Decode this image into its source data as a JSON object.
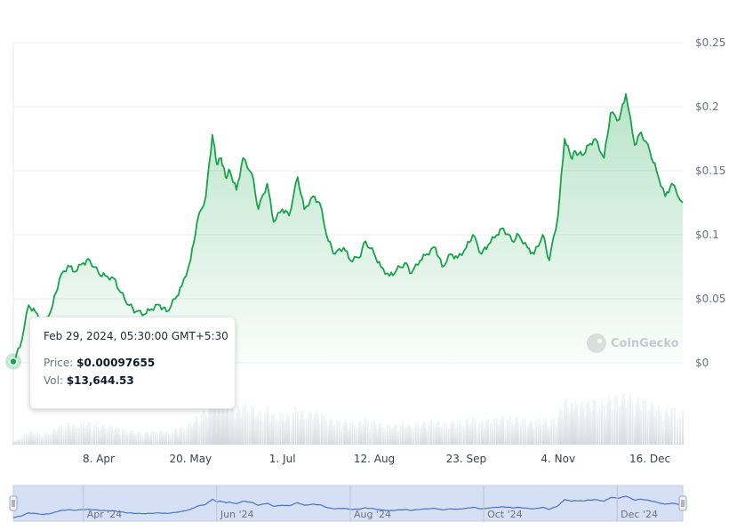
{
  "chart_data": {
    "type": "area",
    "y_ticks": [
      "$0",
      "$0.05",
      "$0.1",
      "$0.15",
      "$0.2",
      "$0.25"
    ],
    "y_tick_values": [
      0,
      0.05,
      0.1,
      0.15,
      0.2,
      0.25
    ],
    "ylim": [
      0,
      0.25
    ],
    "x_ticks": [
      {
        "label": "8. Apr",
        "date": "2024-04-08"
      },
      {
        "label": "20. May",
        "date": "2024-05-20"
      },
      {
        "label": "1. Jul",
        "date": "2024-07-01"
      },
      {
        "label": "12. Aug",
        "date": "2024-08-12"
      },
      {
        "label": "23. Sep",
        "date": "2024-09-23"
      },
      {
        "label": "4. Nov",
        "date": "2024-11-04"
      },
      {
        "label": "16. Dec",
        "date": "2024-12-16"
      }
    ],
    "xlim": [
      "2024-02-29",
      "2024-12-31"
    ],
    "grid": true,
    "colors": {
      "line": "#16a34a",
      "volume": "#e5e7eb",
      "navigator_line": "#4b6fc9",
      "navigator_fill": "#d6e0f5"
    },
    "series": [
      {
        "x": [
          "2024-02-29",
          "2024-03-03",
          "2024-03-07",
          "2024-03-10",
          "2024-03-14",
          "2024-03-18",
          "2024-03-21",
          "2024-03-25",
          "2024-03-28",
          "2024-04-01",
          "2024-04-04",
          "2024-04-08",
          "2024-04-11",
          "2024-04-15",
          "2024-04-18",
          "2024-04-22",
          "2024-04-25",
          "2024-04-29",
          "2024-05-02",
          "2024-05-06",
          "2024-05-09",
          "2024-05-13",
          "2024-05-16",
          "2024-05-20",
          "2024-05-23",
          "2024-05-27",
          "2024-05-30",
          "2024-06-01",
          "2024-06-03",
          "2024-06-05",
          "2024-06-07",
          "2024-06-10",
          "2024-06-13",
          "2024-06-17",
          "2024-06-20",
          "2024-06-24",
          "2024-06-27",
          "2024-07-01",
          "2024-07-04",
          "2024-07-08",
          "2024-07-11",
          "2024-07-15",
          "2024-07-18",
          "2024-07-22",
          "2024-07-25",
          "2024-07-29",
          "2024-08-01",
          "2024-08-05",
          "2024-08-08",
          "2024-08-12",
          "2024-08-15",
          "2024-08-19",
          "2024-08-22",
          "2024-08-26",
          "2024-08-29",
          "2024-09-02",
          "2024-09-05",
          "2024-09-09",
          "2024-09-12",
          "2024-09-16",
          "2024-09-19",
          "2024-09-23",
          "2024-09-26",
          "2024-09-30",
          "2024-10-03",
          "2024-10-07",
          "2024-10-10",
          "2024-10-14",
          "2024-10-17",
          "2024-10-21",
          "2024-10-24",
          "2024-10-28",
          "2024-10-31",
          "2024-11-04",
          "2024-11-07",
          "2024-11-10",
          "2024-11-12",
          "2024-11-15",
          "2024-11-18",
          "2024-11-21",
          "2024-11-25",
          "2024-11-28",
          "2024-12-02",
          "2024-12-05",
          "2024-12-09",
          "2024-12-12",
          "2024-12-16",
          "2024-12-19",
          "2024-12-23",
          "2024-12-26",
          "2024-12-31"
        ],
        "values": [
          0.001,
          0.012,
          0.045,
          0.04,
          0.03,
          0.045,
          0.065,
          0.076,
          0.071,
          0.078,
          0.08,
          0.07,
          0.068,
          0.066,
          0.055,
          0.045,
          0.04,
          0.038,
          0.042,
          0.045,
          0.04,
          0.05,
          0.06,
          0.08,
          0.11,
          0.13,
          0.178,
          0.155,
          0.16,
          0.145,
          0.15,
          0.135,
          0.16,
          0.148,
          0.12,
          0.14,
          0.11,
          0.12,
          0.115,
          0.145,
          0.12,
          0.13,
          0.125,
          0.095,
          0.085,
          0.09,
          0.08,
          0.082,
          0.095,
          0.085,
          0.075,
          0.068,
          0.072,
          0.078,
          0.07,
          0.08,
          0.085,
          0.09,
          0.075,
          0.085,
          0.082,
          0.09,
          0.1,
          0.085,
          0.092,
          0.1,
          0.105,
          0.095,
          0.1,
          0.09,
          0.085,
          0.1,
          0.08,
          0.115,
          0.175,
          0.16,
          0.165,
          0.162,
          0.17,
          0.175,
          0.16,
          0.195,
          0.19,
          0.21,
          0.17,
          0.18,
          0.165,
          0.15,
          0.13,
          0.14,
          0.125
        ]
      }
    ]
  },
  "tooltip": {
    "date": "Feb 29, 2024, 05:30:00 GMT+5:30",
    "price_label": "Price:",
    "price_value": "$0.00097655",
    "vol_label": "Vol:",
    "vol_value": "$13,644.53"
  },
  "watermark": {
    "text": "CoinGecko",
    "icon": "coingecko-logo-icon"
  },
  "navigator": {
    "ticks": [
      {
        "label": "Apr '24",
        "date": "2024-04-01"
      },
      {
        "label": "Jun '24",
        "date": "2024-06-01"
      },
      {
        "label": "Aug '24",
        "date": "2024-08-01"
      },
      {
        "label": "Oct '24",
        "date": "2024-10-01"
      },
      {
        "label": "Dec '24",
        "date": "2024-12-01"
      }
    ]
  }
}
